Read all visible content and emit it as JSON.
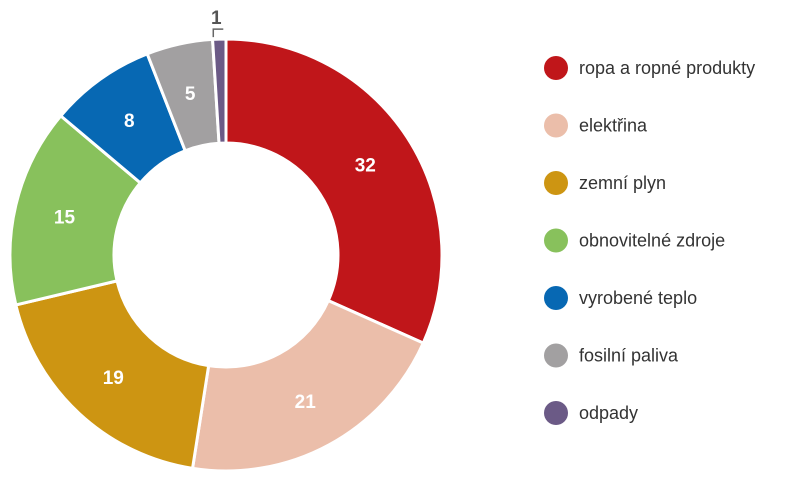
{
  "chart_data": {
    "type": "pie",
    "variant": "donut",
    "title": "",
    "legend_position": "right",
    "series": [
      {
        "name": "ropa a ropné produkty",
        "value": 32,
        "label": "32",
        "color": "#c0161a"
      },
      {
        "name": "elektřina",
        "value": 21,
        "label": "21",
        "color": "#ebbeaa"
      },
      {
        "name": "zemní plyn",
        "value": 19,
        "label": "19",
        "color": "#cd9512"
      },
      {
        "name": "obnovitelné zdroje",
        "value": 15,
        "label": "15",
        "color": "#88c15c"
      },
      {
        "name": "vyrobené teplo",
        "value": 8,
        "label": "8",
        "color": "#0768b3"
      },
      {
        "name": "fosilní paliva",
        "value": 5,
        "label": "5",
        "color": "#a2a0a1"
      },
      {
        "name": "odpady",
        "value": 1,
        "label": "1",
        "color": "#6b5a86"
      }
    ]
  }
}
